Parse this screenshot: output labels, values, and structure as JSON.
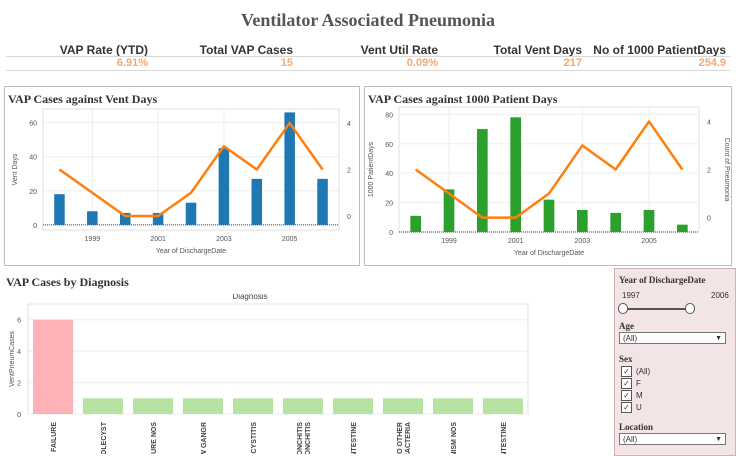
{
  "dashboard": {
    "title": "Ventilator Associated Pneumonia"
  },
  "kpis": [
    {
      "label": "VAP Rate (YTD)",
      "value": "6.91%"
    },
    {
      "label": "Total VAP Cases",
      "value": "15"
    },
    {
      "label": "Vent Util Rate",
      "value": "0.09%"
    },
    {
      "label": "Total Vent Days",
      "value": "217"
    },
    {
      "label": "No of 1000 PatientDays",
      "value": "254.9"
    }
  ],
  "colors": {
    "blue": "#1f77b4",
    "green": "#2ca02c",
    "orange": "#ff7f0e",
    "pink": "#ffb3b8",
    "lightgreen": "#b6e3a1",
    "kpi": "#f4a872"
  },
  "chart_data": [
    {
      "type": "bar",
      "title": "VAP Cases against Vent Days",
      "xlabel": "Year of DischargeDate",
      "ylabel": "Vent Days",
      "y2label": "Count of Pneumonia",
      "x": [
        1998,
        1999,
        2000,
        2001,
        2002,
        2003,
        2004,
        2005,
        2006
      ],
      "x_ticks": [
        "1999",
        "2001",
        "2003",
        "2005"
      ],
      "y_ticks": [
        "0",
        "20",
        "40",
        "60"
      ],
      "y2_ticks": [
        "0",
        "2",
        "4"
      ],
      "ylim": [
        -3,
        68
      ],
      "y2lim": [
        -0.6,
        4.6
      ],
      "bars": [
        18,
        8,
        7,
        7,
        13,
        45,
        27,
        66,
        27
      ],
      "line": [
        2,
        1,
        0,
        0,
        1,
        3,
        2,
        4,
        2
      ]
    },
    {
      "type": "bar",
      "title": "VAP Cases against 1000 Patient Days",
      "xlabel": "Year of DischargeDate",
      "ylabel": "1000 PatientDays",
      "y2label": "Count of Pneumonia",
      "x": [
        1998,
        1999,
        2000,
        2001,
        2002,
        2003,
        2004,
        2005,
        2006
      ],
      "x_ticks": [
        "1999",
        "2001",
        "2003",
        "2005"
      ],
      "y_ticks": [
        "0",
        "20",
        "40",
        "60",
        "80"
      ],
      "y2_ticks": [
        "0",
        "2",
        "4"
      ],
      "ylim": [
        0,
        85
      ],
      "y2lim": [
        -0.6,
        4.6
      ],
      "bars": [
        11,
        29,
        70,
        78,
        22,
        15,
        13,
        15,
        5
      ],
      "line": [
        2,
        1,
        0,
        0,
        1,
        3,
        2,
        4,
        2
      ]
    },
    {
      "type": "bar",
      "title": "VAP Cases by Diagnosis",
      "header": "Diagnosis",
      "ylabel": "VentPneumCases",
      "y_ticks": [
        "0",
        "2",
        "4",
        "6"
      ],
      "ylim": [
        0,
        7
      ],
      "categories": [
        "Y FAILURE",
        "HOLECYST",
        "URE NOS",
        "W GANGR",
        "CYSTITIS",
        "ONCHITIS ONCHITIS",
        "NTESTINE",
        "TO OTHER BACTERIA",
        "NISM NOS",
        "NTESTINE"
      ],
      "values": [
        6,
        1,
        1,
        1,
        1,
        1,
        1,
        1,
        1,
        1
      ]
    }
  ],
  "filters": {
    "year": {
      "label": "Year of DischargeDate",
      "min": "1997",
      "max": "2006"
    },
    "age": {
      "label": "Age",
      "value": "(All)"
    },
    "sex": {
      "label": "Sex",
      "options": [
        "(All)",
        "F",
        "M",
        "U"
      ]
    },
    "location": {
      "label": "Location",
      "value": "(All)"
    }
  }
}
